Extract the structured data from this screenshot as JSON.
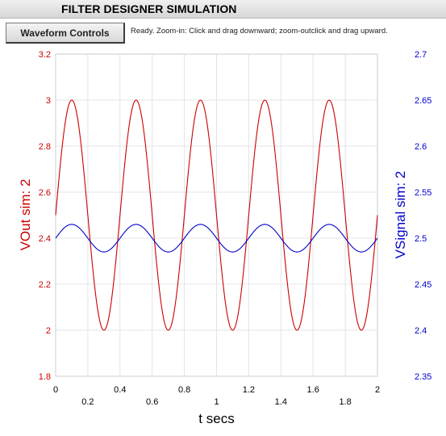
{
  "app": {
    "title": "FILTER DESIGNER SIMULATION",
    "controls_button": "Waveform Controls",
    "status": "Ready.  Zoom-in: Click and drag downward; zoom-outclick and drag upward."
  },
  "colors": {
    "left_series": "#cc0000",
    "right_series": "#0000cc",
    "grid": "#e4e4e4",
    "axis_frame": "#cccccc"
  },
  "chart_data": {
    "type": "line",
    "xlabel": "t secs",
    "ylabel_left": "VOut sim:  2",
    "ylabel_right": "VSignal sim:  2",
    "xlim": [
      0,
      2
    ],
    "ylim_left": [
      1.8,
      3.2
    ],
    "ylim_right": [
      2.35,
      2.7
    ],
    "x_ticks": [
      "0",
      "0.2",
      "0.4",
      "0.6",
      "0.8",
      "1",
      "1.2",
      "1.4",
      "1.6",
      "1.8",
      "2"
    ],
    "y_ticks_left": [
      "1.8",
      "2",
      "2.2",
      "2.4",
      "2.6",
      "2.8",
      "3",
      "3.2"
    ],
    "y_ticks_right": [
      "2.35",
      "2.4",
      "2.45",
      "2.5",
      "2.55",
      "2.6",
      "2.65",
      "2.7"
    ],
    "grid": true,
    "series": [
      {
        "name": "VOut sim:  2",
        "axis": "left",
        "waveform": "sine",
        "frequency_hz": 2.5,
        "offset": 2.5,
        "amplitude": 0.5,
        "values_at_x": {
          "x": [
            0,
            0.1,
            0.2,
            0.3,
            0.4,
            0.5,
            0.6,
            0.7,
            0.8,
            0.9,
            1.0,
            1.1,
            1.2,
            1.3,
            1.4,
            1.5,
            1.6,
            1.7,
            1.8,
            1.9,
            2.0
          ],
          "y": [
            2.5,
            3.0,
            2.5,
            2.0,
            2.5,
            3.0,
            2.5,
            2.0,
            2.5,
            3.0,
            2.5,
            2.0,
            2.5,
            3.0,
            2.5,
            2.0,
            2.5,
            3.0,
            2.5,
            2.0,
            2.5
          ]
        }
      },
      {
        "name": "VSignal sim:  2",
        "axis": "right",
        "waveform": "sine",
        "frequency_hz": 2.5,
        "offset": 2.5,
        "amplitude": 0.015,
        "values_at_x": {
          "x": [
            0,
            0.1,
            0.2,
            0.3,
            0.4,
            0.5,
            0.6,
            0.7,
            0.8,
            0.9,
            1.0,
            1.1,
            1.2,
            1.3,
            1.4,
            1.5,
            1.6,
            1.7,
            1.8,
            1.9,
            2.0
          ],
          "y": [
            2.5,
            2.515,
            2.5,
            2.485,
            2.5,
            2.515,
            2.5,
            2.485,
            2.5,
            2.515,
            2.5,
            2.485,
            2.5,
            2.515,
            2.5,
            2.485,
            2.5,
            2.515,
            2.5,
            2.485,
            2.5
          ]
        }
      }
    ]
  }
}
